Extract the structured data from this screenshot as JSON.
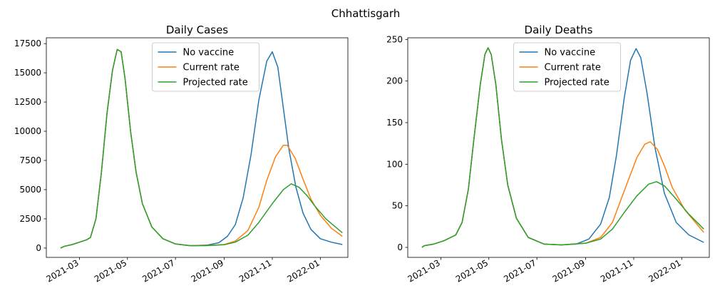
{
  "figure": {
    "suptitle": "Chhattisgarh"
  },
  "colors": {
    "No vaccine": "#1f77b4",
    "Current rate": "#ff7f0e",
    "Projected rate": "#2ca02c"
  },
  "chart_data": [
    {
      "type": "line",
      "title": "Daily Cases",
      "xlabel": "",
      "ylabel": "",
      "xlim": [
        "2021-01-18",
        "2022-02-05"
      ],
      "ylim": [
        -800,
        18000
      ],
      "x_ticks": [
        "2021-03-01",
        "2021-05-01",
        "2021-07-01",
        "2021-09-01",
        "2021-11-01",
        "2022-01-01"
      ],
      "x_tick_labels": [
        "2021-03",
        "2021-05",
        "2021-07",
        "2021-09",
        "2021-11",
        "2022-01"
      ],
      "y_ticks": [
        0,
        2500,
        5000,
        7500,
        10000,
        12500,
        15000,
        17500
      ],
      "y_tick_labels": [
        "0",
        "2500",
        "5000",
        "7500",
        "10000",
        "12500",
        "15000",
        "17500"
      ],
      "legend": {
        "position": "top-center",
        "entries": [
          "No vaccine",
          "Current rate",
          "Projected rate"
        ]
      },
      "grid": false,
      "series": [
        {
          "name": "No vaccine",
          "points": [
            [
              "2021-02-05",
              0
            ],
            [
              "2021-02-10",
              150
            ],
            [
              "2021-02-20",
              300
            ],
            [
              "2021-03-01",
              500
            ],
            [
              "2021-03-10",
              700
            ],
            [
              "2021-03-15",
              900
            ],
            [
              "2021-03-22",
              2500
            ],
            [
              "2021-03-29",
              6500
            ],
            [
              "2021-04-05",
              11500
            ],
            [
              "2021-04-12",
              15200
            ],
            [
              "2021-04-18",
              17000
            ],
            [
              "2021-04-23",
              16800
            ],
            [
              "2021-04-28",
              14500
            ],
            [
              "2021-05-05",
              10000
            ],
            [
              "2021-05-12",
              6500
            ],
            [
              "2021-05-20",
              3800
            ],
            [
              "2021-06-01",
              1800
            ],
            [
              "2021-06-15",
              800
            ],
            [
              "2021-07-01",
              350
            ],
            [
              "2021-07-20",
              200
            ],
            [
              "2021-08-10",
              250
            ],
            [
              "2021-08-25",
              450
            ],
            [
              "2021-09-05",
              1000
            ],
            [
              "2021-09-15",
              2000
            ],
            [
              "2021-09-25",
              4300
            ],
            [
              "2021-10-05",
              8000
            ],
            [
              "2021-10-15",
              12700
            ],
            [
              "2021-10-25",
              16000
            ],
            [
              "2021-11-01",
              16800
            ],
            [
              "2021-11-08",
              15500
            ],
            [
              "2021-11-15",
              12000
            ],
            [
              "2021-11-22",
              8500
            ],
            [
              "2021-12-01",
              5200
            ],
            [
              "2021-12-10",
              3000
            ],
            [
              "2021-12-20",
              1600
            ],
            [
              "2022-01-01",
              800
            ],
            [
              "2022-01-15",
              500
            ],
            [
              "2022-01-29",
              300
            ]
          ]
        },
        {
          "name": "Current rate",
          "points": [
            [
              "2021-02-05",
              0
            ],
            [
              "2021-02-10",
              150
            ],
            [
              "2021-02-20",
              300
            ],
            [
              "2021-03-01",
              500
            ],
            [
              "2021-03-10",
              700
            ],
            [
              "2021-03-15",
              900
            ],
            [
              "2021-03-22",
              2500
            ],
            [
              "2021-03-29",
              6500
            ],
            [
              "2021-04-05",
              11500
            ],
            [
              "2021-04-12",
              15200
            ],
            [
              "2021-04-18",
              17000
            ],
            [
              "2021-04-23",
              16800
            ],
            [
              "2021-04-28",
              14500
            ],
            [
              "2021-05-05",
              10000
            ],
            [
              "2021-05-12",
              6500
            ],
            [
              "2021-05-20",
              3800
            ],
            [
              "2021-06-01",
              1800
            ],
            [
              "2021-06-15",
              800
            ],
            [
              "2021-07-01",
              350
            ],
            [
              "2021-07-20",
              200
            ],
            [
              "2021-08-10",
              220
            ],
            [
              "2021-09-01",
              300
            ],
            [
              "2021-09-15",
              600
            ],
            [
              "2021-10-01",
              1500
            ],
            [
              "2021-10-15",
              3500
            ],
            [
              "2021-10-25",
              5800
            ],
            [
              "2021-11-05",
              7800
            ],
            [
              "2021-11-15",
              8800
            ],
            [
              "2021-11-20",
              8800
            ],
            [
              "2021-11-30",
              7700
            ],
            [
              "2021-12-10",
              5900
            ],
            [
              "2021-12-20",
              4200
            ],
            [
              "2022-01-01",
              2800
            ],
            [
              "2022-01-15",
              1700
            ],
            [
              "2022-01-29",
              1000
            ]
          ]
        },
        {
          "name": "Projected rate",
          "points": [
            [
              "2021-02-05",
              0
            ],
            [
              "2021-02-10",
              150
            ],
            [
              "2021-02-20",
              300
            ],
            [
              "2021-03-01",
              500
            ],
            [
              "2021-03-10",
              700
            ],
            [
              "2021-03-15",
              900
            ],
            [
              "2021-03-22",
              2500
            ],
            [
              "2021-03-29",
              6500
            ],
            [
              "2021-04-05",
              11500
            ],
            [
              "2021-04-12",
              15200
            ],
            [
              "2021-04-18",
              17000
            ],
            [
              "2021-04-23",
              16800
            ],
            [
              "2021-04-28",
              14500
            ],
            [
              "2021-05-05",
              10000
            ],
            [
              "2021-05-12",
              6500
            ],
            [
              "2021-05-20",
              3800
            ],
            [
              "2021-06-01",
              1800
            ],
            [
              "2021-06-15",
              800
            ],
            [
              "2021-07-01",
              350
            ],
            [
              "2021-07-20",
              200
            ],
            [
              "2021-08-10",
              210
            ],
            [
              "2021-09-01",
              280
            ],
            [
              "2021-09-15",
              500
            ],
            [
              "2021-10-01",
              1100
            ],
            [
              "2021-10-15",
              2200
            ],
            [
              "2021-11-01",
              3800
            ],
            [
              "2021-11-15",
              5000
            ],
            [
              "2021-11-25",
              5500
            ],
            [
              "2021-12-05",
              5200
            ],
            [
              "2021-12-15",
              4500
            ],
            [
              "2021-12-25",
              3600
            ],
            [
              "2022-01-08",
              2500
            ],
            [
              "2022-01-29",
              1300
            ]
          ]
        }
      ]
    },
    {
      "type": "line",
      "title": "Daily Deaths",
      "xlabel": "",
      "ylabel": "",
      "xlim": [
        "2021-01-18",
        "2022-02-05"
      ],
      "ylim": [
        -12,
        252
      ],
      "x_ticks": [
        "2021-03-01",
        "2021-05-01",
        "2021-07-01",
        "2021-09-01",
        "2021-11-01",
        "2022-01-01"
      ],
      "x_tick_labels": [
        "2021-03",
        "2021-05",
        "2021-07",
        "2021-09",
        "2021-11",
        "2022-01"
      ],
      "y_ticks": [
        0,
        50,
        100,
        150,
        200,
        250
      ],
      "y_tick_labels": [
        "0",
        "50",
        "100",
        "150",
        "200",
        "250"
      ],
      "legend": {
        "position": "top-center",
        "entries": [
          "No vaccine",
          "Current rate",
          "Projected rate"
        ]
      },
      "grid": false,
      "series": [
        {
          "name": "No vaccine",
          "points": [
            [
              "2021-02-05",
              0
            ],
            [
              "2021-02-08",
              2
            ],
            [
              "2021-02-20",
              4
            ],
            [
              "2021-03-05",
              8
            ],
            [
              "2021-03-20",
              15
            ],
            [
              "2021-03-28",
              30
            ],
            [
              "2021-04-05",
              70
            ],
            [
              "2021-04-12",
              130
            ],
            [
              "2021-04-20",
              195
            ],
            [
              "2021-04-26",
              232
            ],
            [
              "2021-04-30",
              240
            ],
            [
              "2021-05-04",
              232
            ],
            [
              "2021-05-10",
              195
            ],
            [
              "2021-05-17",
              130
            ],
            [
              "2021-05-25",
              75
            ],
            [
              "2021-06-05",
              35
            ],
            [
              "2021-06-20",
              12
            ],
            [
              "2021-07-10",
              4
            ],
            [
              "2021-08-01",
              3
            ],
            [
              "2021-08-20",
              4
            ],
            [
              "2021-09-05",
              10
            ],
            [
              "2021-09-20",
              28
            ],
            [
              "2021-10-01",
              60
            ],
            [
              "2021-10-10",
              110
            ],
            [
              "2021-10-20",
              180
            ],
            [
              "2021-10-28",
              225
            ],
            [
              "2021-11-04",
              239
            ],
            [
              "2021-11-10",
              228
            ],
            [
              "2021-11-18",
              185
            ],
            [
              "2021-11-28",
              120
            ],
            [
              "2021-12-10",
              65
            ],
            [
              "2021-12-25",
              30
            ],
            [
              "2022-01-10",
              15
            ],
            [
              "2022-01-29",
              6
            ]
          ]
        },
        {
          "name": "Current rate",
          "points": [
            [
              "2021-02-05",
              0
            ],
            [
              "2021-02-08",
              2
            ],
            [
              "2021-02-20",
              4
            ],
            [
              "2021-03-05",
              8
            ],
            [
              "2021-03-20",
              15
            ],
            [
              "2021-03-28",
              30
            ],
            [
              "2021-04-05",
              70
            ],
            [
              "2021-04-12",
              130
            ],
            [
              "2021-04-20",
              195
            ],
            [
              "2021-04-26",
              232
            ],
            [
              "2021-04-30",
              240
            ],
            [
              "2021-05-04",
              232
            ],
            [
              "2021-05-10",
              195
            ],
            [
              "2021-05-17",
              130
            ],
            [
              "2021-05-25",
              75
            ],
            [
              "2021-06-05",
              35
            ],
            [
              "2021-06-20",
              12
            ],
            [
              "2021-07-10",
              4
            ],
            [
              "2021-08-01",
              3
            ],
            [
              "2021-09-01",
              5
            ],
            [
              "2021-09-20",
              12
            ],
            [
              "2021-10-05",
              30
            ],
            [
              "2021-10-20",
              68
            ],
            [
              "2021-11-05",
              108
            ],
            [
              "2021-11-15",
              124
            ],
            [
              "2021-11-22",
              127
            ],
            [
              "2021-12-01",
              118
            ],
            [
              "2021-12-10",
              98
            ],
            [
              "2021-12-20",
              72
            ],
            [
              "2022-01-05",
              45
            ],
            [
              "2022-01-29",
              18
            ]
          ]
        },
        {
          "name": "Projected rate",
          "points": [
            [
              "2021-02-05",
              0
            ],
            [
              "2021-02-08",
              2
            ],
            [
              "2021-02-20",
              4
            ],
            [
              "2021-03-05",
              8
            ],
            [
              "2021-03-20",
              15
            ],
            [
              "2021-03-28",
              30
            ],
            [
              "2021-04-05",
              70
            ],
            [
              "2021-04-12",
              130
            ],
            [
              "2021-04-20",
              195
            ],
            [
              "2021-04-26",
              232
            ],
            [
              "2021-04-30",
              240
            ],
            [
              "2021-05-04",
              232
            ],
            [
              "2021-05-10",
              195
            ],
            [
              "2021-05-17",
              130
            ],
            [
              "2021-05-25",
              75
            ],
            [
              "2021-06-05",
              35
            ],
            [
              "2021-06-20",
              12
            ],
            [
              "2021-07-10",
              4
            ],
            [
              "2021-08-01",
              3
            ],
            [
              "2021-09-01",
              5
            ],
            [
              "2021-09-20",
              10
            ],
            [
              "2021-10-05",
              22
            ],
            [
              "2021-10-20",
              42
            ],
            [
              "2021-11-05",
              62
            ],
            [
              "2021-11-20",
              76
            ],
            [
              "2021-11-30",
              79
            ],
            [
              "2021-12-10",
              74
            ],
            [
              "2021-12-25",
              58
            ],
            [
              "2022-01-10",
              40
            ],
            [
              "2022-01-29",
              22
            ]
          ]
        }
      ]
    }
  ]
}
